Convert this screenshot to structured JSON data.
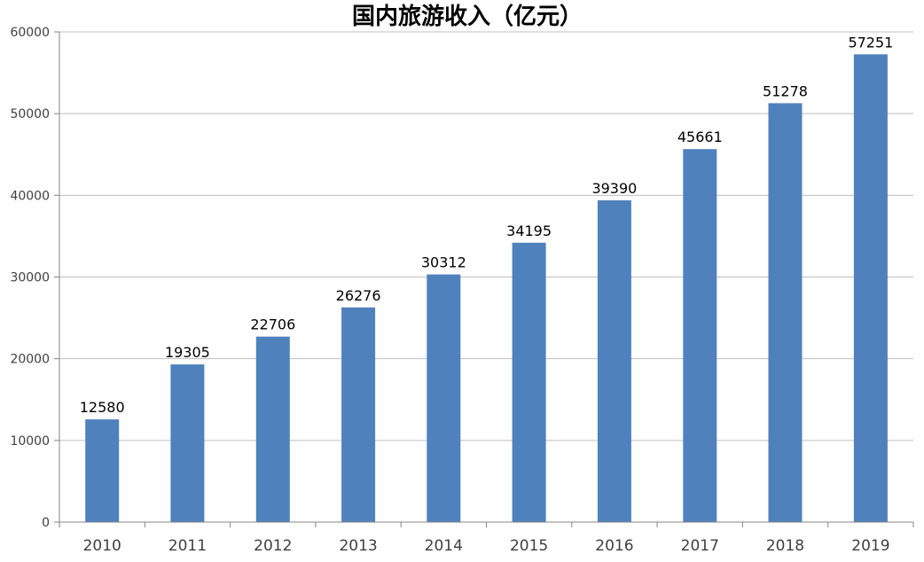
{
  "chart_data": {
    "type": "bar",
    "title": "国内旅游收入（亿元）",
    "categories": [
      "2010",
      "2011",
      "2012",
      "2013",
      "2014",
      "2015",
      "2016",
      "2017",
      "2018",
      "2019"
    ],
    "values": [
      12580,
      19305,
      22706,
      26276,
      30312,
      34195,
      39390,
      45661,
      51278,
      57251
    ],
    "xlabel": "",
    "ylabel": "",
    "ylim": [
      0,
      60000
    ],
    "yticks": [
      0,
      10000,
      20000,
      30000,
      40000,
      50000,
      60000
    ],
    "grid": true,
    "legend": "none",
    "data_labels": true,
    "colors": {
      "bar_fill": "#4F81BD",
      "gridline": "#BFBFBF",
      "axis_line": "#848484",
      "tick_label": "#3F3F3F",
      "data_label": "#000000",
      "background": "#FFFFFF"
    }
  }
}
